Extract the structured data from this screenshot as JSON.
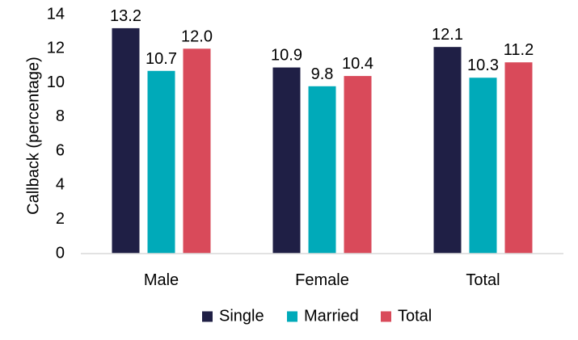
{
  "chart_data": {
    "type": "bar",
    "title": "",
    "xlabel": "",
    "ylabel": "Callback (percentage)",
    "categories": [
      "Male",
      "Female",
      "Total"
    ],
    "ylim": [
      0,
      14
    ],
    "yticks": [
      0,
      2,
      4,
      6,
      8,
      10,
      12,
      14
    ],
    "grid": false,
    "legend_position": "bottom",
    "series": [
      {
        "name": "Single",
        "color": "#1f1f45",
        "values": [
          13.2,
          10.9,
          12.1
        ],
        "labels": [
          "13.2",
          "10.9",
          "12.1"
        ]
      },
      {
        "name": "Married",
        "color": "#00aab9",
        "values": [
          10.7,
          9.8,
          10.3
        ],
        "labels": [
          "10.7",
          "9.8",
          "10.3"
        ]
      },
      {
        "name": "Total",
        "color": "#d94a5a",
        "values": [
          12.0,
          10.4,
          11.2
        ],
        "labels": [
          "12.0",
          "10.4",
          "11.2"
        ]
      }
    ]
  }
}
